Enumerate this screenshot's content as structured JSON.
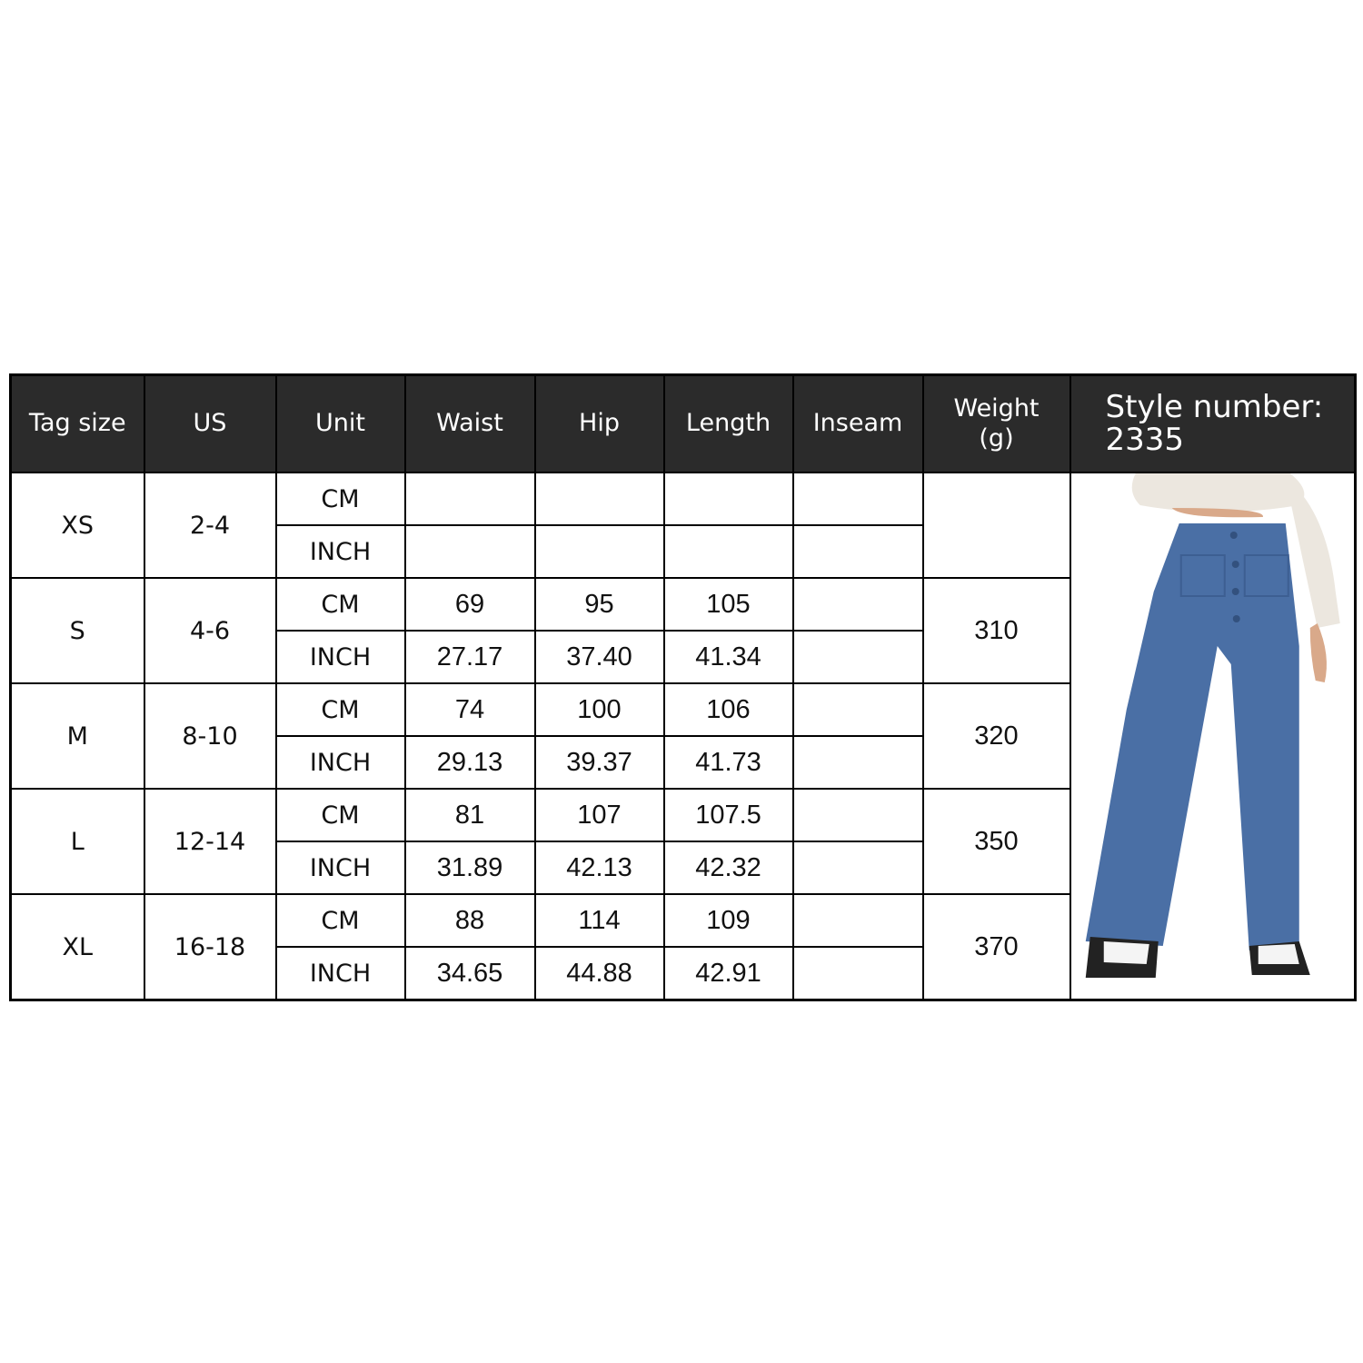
{
  "headers": {
    "tag_size": "Tag size",
    "us": "US",
    "unit": "Unit",
    "waist": "Waist",
    "hip": "Hip",
    "length": "Length",
    "inseam": "Inseam",
    "weight_line1": "Weight",
    "weight_line2": "(g)",
    "style_line1": "Style number:",
    "style_line2": "2335"
  },
  "rows": [
    {
      "tag": "XS",
      "us": "2-4",
      "weight": "",
      "cm": {
        "unit": "CM",
        "waist": "",
        "hip": "",
        "length": "",
        "inseam": ""
      },
      "inch": {
        "unit": "INCH",
        "waist": "",
        "hip": "",
        "length": "",
        "inseam": ""
      }
    },
    {
      "tag": "S",
      "us": "4-6",
      "weight": "310",
      "cm": {
        "unit": "CM",
        "waist": "69",
        "hip": "95",
        "length": "105",
        "inseam": ""
      },
      "inch": {
        "unit": "INCH",
        "waist": "27.17",
        "hip": "37.40",
        "length": "41.34",
        "inseam": ""
      }
    },
    {
      "tag": "M",
      "us": "8-10",
      "weight": "320",
      "cm": {
        "unit": "CM",
        "waist": "74",
        "hip": "100",
        "length": "106",
        "inseam": ""
      },
      "inch": {
        "unit": "INCH",
        "waist": "29.13",
        "hip": "39.37",
        "length": "41.73",
        "inseam": ""
      }
    },
    {
      "tag": "L",
      "us": "12-14",
      "weight": "350",
      "cm": {
        "unit": "CM",
        "waist": "81",
        "hip": "107",
        "length": "107.5",
        "inseam": ""
      },
      "inch": {
        "unit": "INCH",
        "waist": "31.89",
        "hip": "42.13",
        "length": "42.32",
        "inseam": ""
      }
    },
    {
      "tag": "XL",
      "us": "16-18",
      "weight": "370",
      "cm": {
        "unit": "CM",
        "waist": "88",
        "hip": "114",
        "length": "109",
        "inseam": ""
      },
      "inch": {
        "unit": "INCH",
        "waist": "34.65",
        "hip": "44.88",
        "length": "42.91",
        "inseam": ""
      }
    }
  ],
  "colors": {
    "header_bg": "#2b2b2b",
    "pants": "#4a6fa5",
    "sweater": "#ece7df"
  },
  "image": {
    "subject": "wide-leg-blue-pants-photo"
  }
}
